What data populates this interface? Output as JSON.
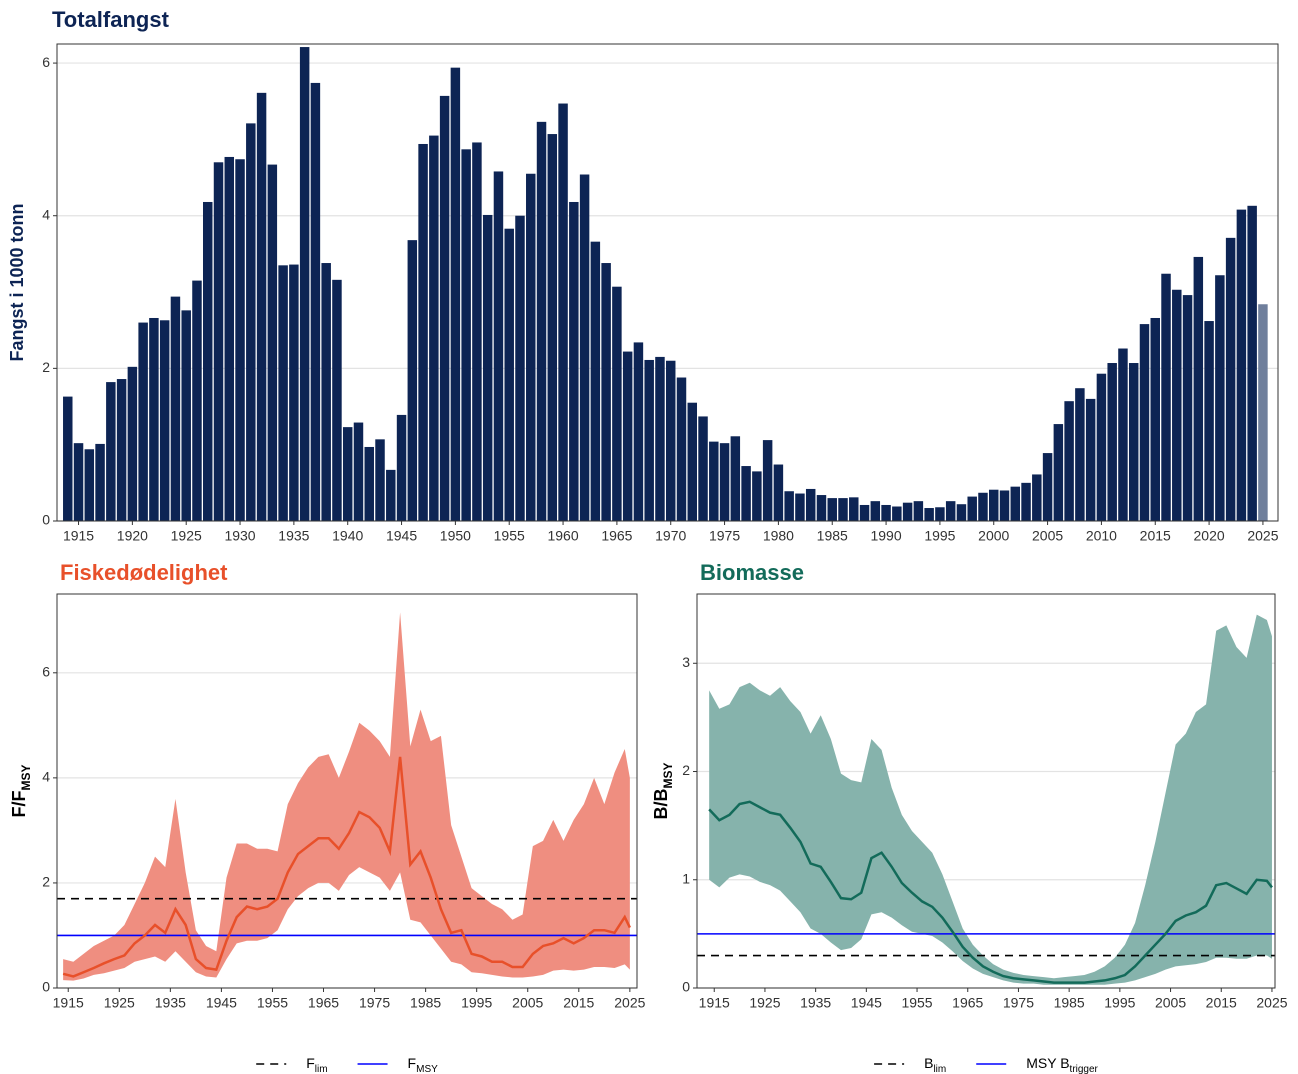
{
  "chart_data": [
    {
      "type": "bar",
      "title": "Totalfangst",
      "title_color": "#0d2454",
      "ylabel": "Fangst i 1000 tonn",
      "ylabel_color": "#0d2454",
      "x": [
        1914,
        1915,
        1916,
        1917,
        1918,
        1919,
        1920,
        1921,
        1922,
        1923,
        1924,
        1925,
        1926,
        1927,
        1928,
        1929,
        1930,
        1931,
        1932,
        1933,
        1934,
        1935,
        1936,
        1937,
        1938,
        1939,
        1940,
        1941,
        1942,
        1943,
        1944,
        1945,
        1946,
        1947,
        1948,
        1949,
        1950,
        1951,
        1952,
        1953,
        1954,
        1955,
        1956,
        1957,
        1958,
        1959,
        1960,
        1961,
        1962,
        1963,
        1964,
        1965,
        1966,
        1967,
        1968,
        1969,
        1970,
        1971,
        1972,
        1973,
        1974,
        1975,
        1976,
        1977,
        1978,
        1979,
        1980,
        1981,
        1982,
        1983,
        1984,
        1985,
        1986,
        1987,
        1988,
        1989,
        1990,
        1991,
        1992,
        1993,
        1994,
        1995,
        1996,
        1997,
        1998,
        1999,
        2000,
        2001,
        2002,
        2003,
        2004,
        2005,
        2006,
        2007,
        2008,
        2009,
        2010,
        2011,
        2012,
        2013,
        2014,
        2015,
        2016,
        2017,
        2018,
        2019,
        2020,
        2021,
        2022,
        2023,
        2024,
        2025
      ],
      "values": [
        1.63,
        1.02,
        0.94,
        1.01,
        1.82,
        1.86,
        2.02,
        2.6,
        2.66,
        2.63,
        2.94,
        2.76,
        3.15,
        4.18,
        4.7,
        4.77,
        4.74,
        5.21,
        5.61,
        4.67,
        3.35,
        3.36,
        6.21,
        5.74,
        3.38,
        3.16,
        1.23,
        1.29,
        0.97,
        1.07,
        0.67,
        1.39,
        3.68,
        4.94,
        5.05,
        5.57,
        5.94,
        4.87,
        4.96,
        4.01,
        4.58,
        3.83,
        4.0,
        4.55,
        5.23,
        5.07,
        5.47,
        4.18,
        4.54,
        3.66,
        3.38,
        3.07,
        2.22,
        2.34,
        2.11,
        2.15,
        2.1,
        1.88,
        1.55,
        1.37,
        1.04,
        1.02,
        1.11,
        0.72,
        0.65,
        1.06,
        0.74,
        0.39,
        0.36,
        0.42,
        0.34,
        0.3,
        0.3,
        0.31,
        0.21,
        0.26,
        0.21,
        0.19,
        0.24,
        0.26,
        0.17,
        0.18,
        0.26,
        0.22,
        0.32,
        0.37,
        0.41,
        0.4,
        0.45,
        0.5,
        0.61,
        0.89,
        1.27,
        1.57,
        1.74,
        1.6,
        1.93,
        2.07,
        2.26,
        2.07,
        2.58,
        2.66,
        3.24,
        3.03,
        2.96,
        3.46,
        2.62,
        3.22,
        3.71,
        4.08,
        4.13,
        2.84
      ],
      "color": "#0d2454",
      "last_color": "#6f7f9c",
      "xlim": [
        1913,
        2026.4
      ],
      "ylim": [
        0,
        6.25
      ],
      "xticks": [
        1915,
        1920,
        1925,
        1930,
        1935,
        1940,
        1945,
        1950,
        1955,
        1960,
        1965,
        1970,
        1975,
        1980,
        1985,
        1990,
        1995,
        2000,
        2005,
        2010,
        2015,
        2020,
        2025
      ],
      "yticks": [
        0,
        2,
        4,
        6
      ],
      "grid": true
    },
    {
      "type": "line",
      "title": "Fiskedødelighet",
      "title_color": "#e8502a",
      "ylabel": [
        "F/F",
        "MSY"
      ],
      "ylabel_color": "#000000",
      "x": [
        1914,
        1916,
        1918,
        1920,
        1922,
        1924,
        1926,
        1928,
        1930,
        1932,
        1934,
        1936,
        1938,
        1940,
        1942,
        1944,
        1946,
        1948,
        1950,
        1952,
        1954,
        1956,
        1958,
        1960,
        1962,
        1964,
        1966,
        1968,
        1970,
        1972,
        1974,
        1976,
        1978,
        1980,
        1982,
        1984,
        1986,
        1988,
        1990,
        1992,
        1994,
        1996,
        1998,
        2000,
        2002,
        2004,
        2006,
        2008,
        2010,
        2012,
        2014,
        2016,
        2018,
        2020,
        2022,
        2024,
        2025
      ],
      "line": {
        "color": "#e8502a",
        "values": [
          0.27,
          0.22,
          0.3,
          0.38,
          0.47,
          0.55,
          0.62,
          0.85,
          1.0,
          1.2,
          1.05,
          1.5,
          1.2,
          0.55,
          0.38,
          0.35,
          0.9,
          1.35,
          1.55,
          1.5,
          1.55,
          1.7,
          2.2,
          2.55,
          2.7,
          2.85,
          2.85,
          2.65,
          2.95,
          3.35,
          3.25,
          3.05,
          2.6,
          4.4,
          2.35,
          2.6,
          2.1,
          1.5,
          1.05,
          1.1,
          0.65,
          0.6,
          0.5,
          0.5,
          0.4,
          0.4,
          0.65,
          0.8,
          0.85,
          0.95,
          0.85,
          0.95,
          1.1,
          1.1,
          1.05,
          1.35,
          1.15
        ]
      },
      "band": {
        "color": "#ef8e80",
        "lower": [
          0.15,
          0.14,
          0.18,
          0.25,
          0.28,
          0.33,
          0.38,
          0.5,
          0.55,
          0.6,
          0.5,
          0.7,
          0.5,
          0.3,
          0.22,
          0.2,
          0.55,
          0.85,
          0.9,
          0.9,
          0.95,
          1.1,
          1.5,
          1.75,
          1.9,
          2.0,
          2.0,
          1.85,
          2.15,
          2.3,
          2.2,
          2.1,
          1.85,
          2.2,
          1.3,
          1.25,
          1.0,
          0.75,
          0.5,
          0.45,
          0.3,
          0.28,
          0.25,
          0.22,
          0.2,
          0.2,
          0.22,
          0.25,
          0.33,
          0.35,
          0.33,
          0.35,
          0.4,
          0.4,
          0.38,
          0.45,
          0.35
        ],
        "upper": [
          0.55,
          0.5,
          0.65,
          0.8,
          0.9,
          1.0,
          1.2,
          1.6,
          2.0,
          2.5,
          2.3,
          3.6,
          2.2,
          1.1,
          0.8,
          0.7,
          2.1,
          2.75,
          2.75,
          2.65,
          2.65,
          2.6,
          3.5,
          3.9,
          4.2,
          4.4,
          4.45,
          4.0,
          4.5,
          5.05,
          4.9,
          4.7,
          4.4,
          7.15,
          4.6,
          5.3,
          4.7,
          4.8,
          3.1,
          2.5,
          1.9,
          1.75,
          1.6,
          1.5,
          1.3,
          1.4,
          2.7,
          2.8,
          3.2,
          2.8,
          3.2,
          3.5,
          4.0,
          3.5,
          4.1,
          4.55,
          4.0
        ]
      },
      "reference_lines": [
        {
          "name": [
            "F",
            "lim"
          ],
          "value": 1.7,
          "color": "#000000",
          "dashed": true
        },
        {
          "name": [
            "F",
            "MSY"
          ],
          "value": 1.0,
          "color": "#0000ff",
          "dashed": false
        }
      ],
      "xlim": [
        1912.8,
        2026.4
      ],
      "ylim": [
        0,
        7.5
      ],
      "xticks": [
        1915,
        1925,
        1935,
        1945,
        1955,
        1965,
        1975,
        1985,
        1995,
        2005,
        2015,
        2025
      ],
      "yticks": [
        0,
        2,
        4,
        6
      ],
      "grid": true
    },
    {
      "type": "line",
      "title": "Biomasse",
      "title_color": "#136b5a",
      "ylabel": [
        "B/B",
        "MSY"
      ],
      "ylabel_color": "#000000",
      "x": [
        1914,
        1916,
        1918,
        1920,
        1922,
        1924,
        1926,
        1928,
        1930,
        1932,
        1934,
        1936,
        1938,
        1940,
        1942,
        1944,
        1946,
        1948,
        1950,
        1952,
        1954,
        1956,
        1958,
        1960,
        1962,
        1964,
        1966,
        1968,
        1970,
        1972,
        1974,
        1976,
        1978,
        1980,
        1982,
        1984,
        1986,
        1988,
        1990,
        1992,
        1994,
        1996,
        1998,
        2000,
        2002,
        2004,
        2006,
        2008,
        2010,
        2012,
        2014,
        2016,
        2018,
        2020,
        2022,
        2024,
        2025
      ],
      "line": {
        "color": "#136b5a",
        "values": [
          1.65,
          1.55,
          1.6,
          1.7,
          1.72,
          1.67,
          1.62,
          1.6,
          1.48,
          1.35,
          1.15,
          1.12,
          0.98,
          0.83,
          0.82,
          0.88,
          1.2,
          1.25,
          1.12,
          0.97,
          0.88,
          0.8,
          0.75,
          0.65,
          0.52,
          0.38,
          0.28,
          0.2,
          0.15,
          0.11,
          0.09,
          0.08,
          0.07,
          0.06,
          0.05,
          0.05,
          0.05,
          0.05,
          0.06,
          0.07,
          0.09,
          0.12,
          0.2,
          0.3,
          0.4,
          0.5,
          0.62,
          0.67,
          0.7,
          0.76,
          0.95,
          0.97,
          0.92,
          0.87,
          1.0,
          0.99,
          0.93
        ]
      },
      "band": {
        "color": "#86b3ac",
        "lower": [
          1.0,
          0.93,
          1.02,
          1.05,
          1.03,
          0.98,
          0.95,
          0.9,
          0.8,
          0.7,
          0.55,
          0.5,
          0.42,
          0.35,
          0.37,
          0.45,
          0.68,
          0.7,
          0.65,
          0.58,
          0.52,
          0.5,
          0.48,
          0.42,
          0.34,
          0.25,
          0.18,
          0.13,
          0.1,
          0.07,
          0.05,
          0.04,
          0.04,
          0.03,
          0.03,
          0.03,
          0.03,
          0.03,
          0.03,
          0.03,
          0.04,
          0.05,
          0.07,
          0.1,
          0.13,
          0.17,
          0.2,
          0.21,
          0.22,
          0.24,
          0.28,
          0.28,
          0.27,
          0.27,
          0.3,
          0.3,
          0.27
        ],
        "upper": [
          2.75,
          2.58,
          2.62,
          2.78,
          2.82,
          2.75,
          2.7,
          2.78,
          2.65,
          2.55,
          2.35,
          2.52,
          2.3,
          1.98,
          1.92,
          1.9,
          2.3,
          2.2,
          1.85,
          1.6,
          1.45,
          1.35,
          1.25,
          1.05,
          0.8,
          0.55,
          0.4,
          0.3,
          0.22,
          0.17,
          0.14,
          0.12,
          0.11,
          0.1,
          0.09,
          0.1,
          0.11,
          0.12,
          0.15,
          0.2,
          0.28,
          0.4,
          0.6,
          0.95,
          1.35,
          1.8,
          2.25,
          2.35,
          2.55,
          2.62,
          3.3,
          3.35,
          3.15,
          3.05,
          3.45,
          3.4,
          3.25
        ]
      },
      "reference_lines": [
        {
          "name": [
            "B",
            "lim"
          ],
          "value": 0.3,
          "color": "#000000",
          "dashed": true
        },
        {
          "name": [
            "MSY B",
            "trigger"
          ],
          "value": 0.5,
          "color": "#0000ff",
          "dashed": false
        }
      ],
      "xlim": [
        1911.6,
        2025.6
      ],
      "ylim": [
        0,
        3.64
      ],
      "xticks": [
        1915,
        1925,
        1935,
        1945,
        1955,
        1965,
        1975,
        1985,
        1995,
        2005,
        2015,
        2025
      ],
      "yticks": [
        0,
        1,
        2,
        3
      ],
      "grid": true
    }
  ]
}
